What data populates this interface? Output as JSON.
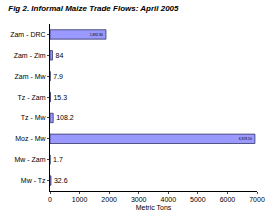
{
  "chart_data": {
    "type": "bar",
    "title": "Fig 2. Informal Maize Trade Flows: April 2005",
    "orientation": "horizontal",
    "categories": [
      "Zam - DRC",
      "Zam - Zim",
      "Zam - Mw",
      "Tz - Zam",
      "Tz - Mw",
      "Moz - Mw",
      "Mw - Zam",
      "Mw - Tz"
    ],
    "values": [
      1892.8,
      84,
      7.9,
      15.3,
      108.2,
      6929.5,
      1.7,
      32.6
    ],
    "value_labels": [
      "1,892.80",
      "84",
      "7.9",
      "15.3",
      "108.2",
      "6,929.50",
      "1.7",
      "32.6"
    ],
    "data_labels": true,
    "color": "#9999ff",
    "x_label": "Metric Tons",
    "xlim": [
      0,
      7000
    ],
    "xticks": [
      0,
      1000,
      2000,
      3000,
      4000,
      5000,
      6000,
      7000
    ],
    "grid": false
  }
}
